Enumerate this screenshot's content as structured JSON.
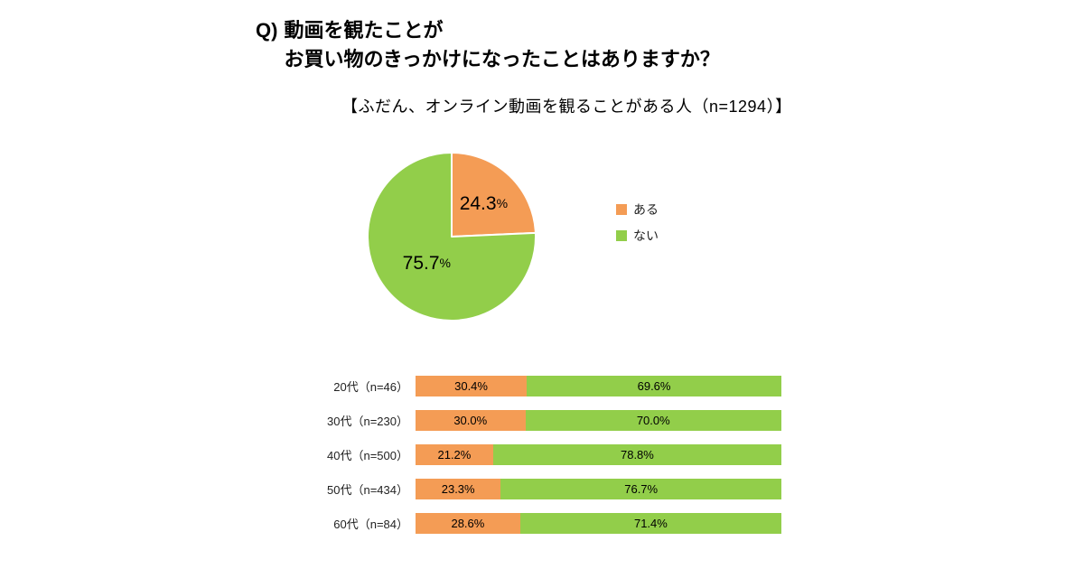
{
  "title": {
    "prefix": "Q)",
    "line1": "動画を観たことが",
    "line2": "お買い物のきっかけになったことはありますか？"
  },
  "subtitle": "【ふだん、オンライン動画を観ることがある人（n=1294）】",
  "colors": {
    "yes": "#F49C55",
    "no": "#92CE4A",
    "text": "#000000",
    "background": "#ffffff"
  },
  "legend": [
    {
      "label": "ある",
      "color": "#F49C55"
    },
    {
      "label": "ない",
      "color": "#92CE4A"
    }
  ],
  "chart_data": [
    {
      "type": "pie",
      "title": "ふだん、オンライン動画を観ることがある人",
      "n_label": "n=1294",
      "slices": [
        {
          "label": "ある",
          "value": 24.3,
          "color": "#F49C55"
        },
        {
          "label": "ない",
          "value": 75.7,
          "color": "#92CE4A"
        }
      ],
      "start_angle": "top",
      "direction": "clockwise",
      "value_suffix": "%"
    },
    {
      "type": "bar",
      "subtype": "horizontal-stacked-100pct",
      "categories": [
        "20代（n=46）",
        "30代（n=230）",
        "40代（n=500）",
        "50代（n=434）",
        "60代（n=84）"
      ],
      "series": [
        {
          "name": "ある",
          "color": "#F49C55",
          "values": [
            30.4,
            30.0,
            21.2,
            23.3,
            28.6
          ]
        },
        {
          "name": "ない",
          "color": "#92CE4A",
          "values": [
            69.6,
            70.0,
            78.8,
            76.7,
            71.4
          ]
        }
      ],
      "value_suffix": "%",
      "xlim": [
        0,
        100
      ],
      "grid": false,
      "legend_position": "right-of-pie"
    }
  ]
}
